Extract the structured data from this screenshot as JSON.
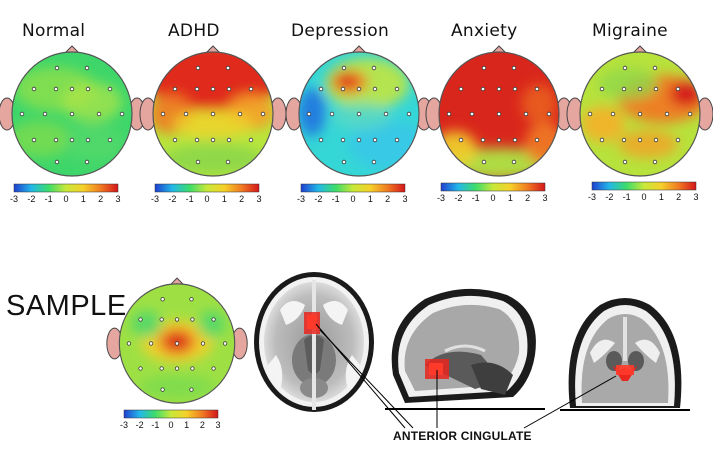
{
  "maps": [
    {
      "label": "Normal",
      "pattern": "normal"
    },
    {
      "label": "ADHD",
      "pattern": "adhd"
    },
    {
      "label": "Depression",
      "pattern": "depression"
    },
    {
      "label": "Anxiety",
      "pattern": "anxiety"
    },
    {
      "label": "Migraine",
      "pattern": "migraine"
    }
  ],
  "sample": {
    "label": "SAMPLE",
    "pattern": "sample"
  },
  "scale_ticks": [
    "-3",
    "-2",
    "-1",
    "0",
    "1",
    "2",
    "3"
  ],
  "scale_colors": [
    "#1f3fd0",
    "#23b8e8",
    "#3ddc6a",
    "#c8e83a",
    "#f5d02a",
    "#f07a22",
    "#d4161a"
  ],
  "brain_annotation": "ANTERIOR CINGULATE",
  "highlight_color": "#e8261e"
}
